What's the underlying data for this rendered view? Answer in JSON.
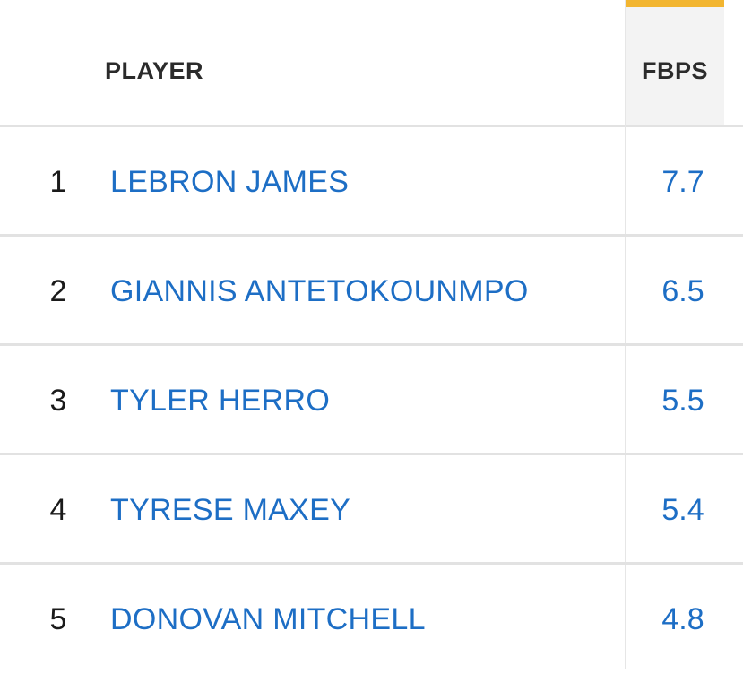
{
  "header": {
    "player_label": "PLAYER",
    "fbps_label": "FBPS"
  },
  "colors": {
    "link": "#1d6ec5",
    "accent": "#f2b530",
    "header_bg": "#f3f3f3",
    "divider": "#e2e2e2"
  },
  "rows": [
    {
      "rank": "1",
      "player": "LEBRON JAMES",
      "fbps": "7.7"
    },
    {
      "rank": "2",
      "player": "GIANNIS ANTETOKOUNMPO",
      "fbps": "6.5"
    },
    {
      "rank": "3",
      "player": "TYLER HERRO",
      "fbps": "5.5"
    },
    {
      "rank": "4",
      "player": "TYRESE MAXEY",
      "fbps": "5.4"
    },
    {
      "rank": "5",
      "player": "DONOVAN MITCHELL",
      "fbps": "4.8"
    }
  ]
}
